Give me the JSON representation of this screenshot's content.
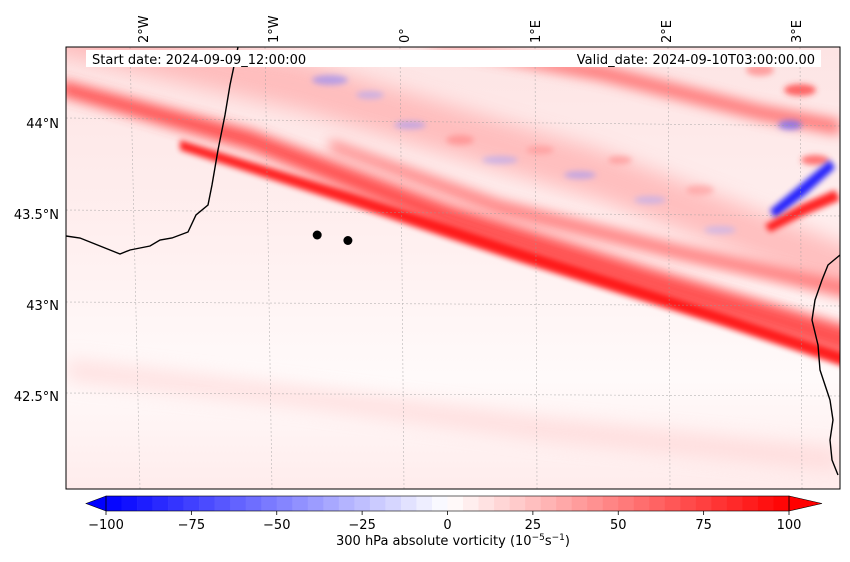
{
  "map": {
    "start_date": "Start date: 2024-09-09_12:00:00",
    "valid_date": "Valid_date: 2024-09-10T03:00:00.00",
    "lon_ticks": [
      "2°W",
      "1°W",
      "0°",
      "1°E",
      "2°E",
      "3°E"
    ],
    "lat_ticks": [
      "44°N",
      "43.5°N",
      "43°N",
      "42.5°N"
    ],
    "markers": [
      {
        "lon": -0.65,
        "lat": 43.39
      },
      {
        "lon": -0.42,
        "lat": 43.36
      }
    ],
    "colors": {
      "neg": "#0000ff",
      "zero": "#ffffff",
      "pos": "#ff0000",
      "coast": "#000000",
      "marker": "#000000"
    }
  },
  "colorbar": {
    "label_prefix": "300 hPa absolute vorticity (10",
    "label_exp1": "−5",
    "label_mid": "s",
    "label_exp2": "−1",
    "label_suffix": ")",
    "ticks": [
      "−100",
      "−75",
      "−50",
      "−25",
      "0",
      "25",
      "50",
      "75",
      "100"
    ],
    "range": [
      -110,
      110
    ],
    "steps": 44
  }
}
